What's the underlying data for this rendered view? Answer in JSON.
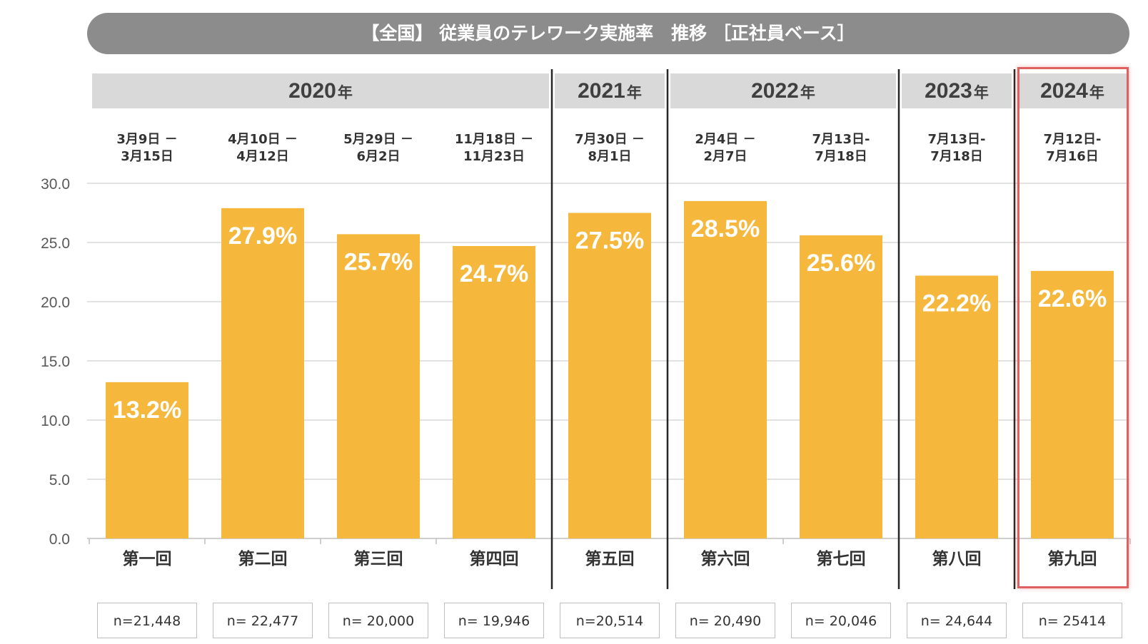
{
  "title": "【全国】 従業員のテレワーク実施率　推移 ［正社員ベース］",
  "year_unit": "年",
  "years": [
    {
      "year": "2020",
      "span": [
        0,
        3
      ]
    },
    {
      "year": "2021",
      "span": [
        4,
        4
      ]
    },
    {
      "year": "2022",
      "span": [
        5,
        6
      ]
    },
    {
      "year": "2023",
      "span": [
        7,
        7
      ]
    },
    {
      "year": "2024",
      "span": [
        8,
        8
      ]
    }
  ],
  "chart_data": {
    "type": "bar",
    "title": "【全国】 従業員のテレワーク実施率　推移 ［正社員ベース］",
    "categories": [
      "第一回",
      "第二回",
      "第三回",
      "第四回",
      "第五回",
      "第六回",
      "第七回",
      "第八回",
      "第九回"
    ],
    "values": [
      13.2,
      27.9,
      25.7,
      24.7,
      27.5,
      28.5,
      25.6,
      22.2,
      22.6
    ],
    "value_labels": [
      "13.2%",
      "27.9%",
      "25.7%",
      "24.7%",
      "27.5%",
      "28.5%",
      "25.6%",
      "22.2%",
      "22.6%"
    ],
    "y_ticks": [
      "0.0",
      "5.0",
      "10.0",
      "15.0",
      "20.0",
      "25.0",
      "30.0"
    ],
    "ylim": [
      0,
      30
    ],
    "grid": true,
    "bar_color": "#f5b83d",
    "highlight_color": "#e06060",
    "highlight_index": 8,
    "periods": [
      "3月9日 －\n3月15日",
      "4月10日 －\n4月12日",
      "5月29日 －\n6月2日",
      "11月18日 －\n11月23日",
      "7月30日 －\n8月1日",
      "2月4日 －\n2月7日",
      "7月13日-\n7月18日",
      "7月13日-\n7月18日",
      "7月12日-\n7月16日"
    ],
    "sample_sizes": [
      "n=21,448",
      "n= 22,477",
      "n= 20,000",
      "n= 19,946",
      "n=20,514",
      "n= 20,490",
      "n= 20,046",
      "n= 24,644",
      "n= 25414"
    ]
  }
}
